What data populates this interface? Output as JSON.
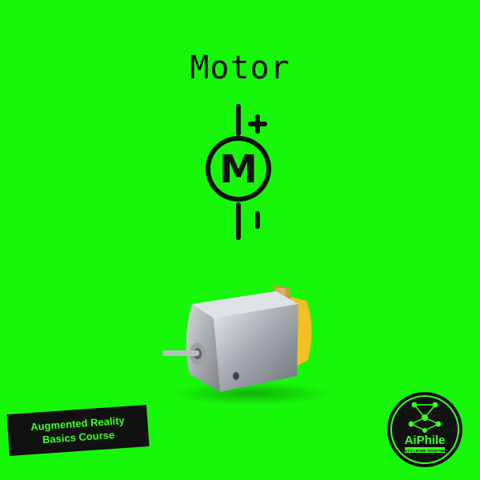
{
  "title": "Motor",
  "symbol": {
    "icon": "motor-circuit-symbol-icon",
    "letter": "M",
    "positive": "+",
    "negative": "-"
  },
  "photo": {
    "icon": "dc-motor-photo"
  },
  "badge": {
    "line1": "Augmented Reality",
    "line2": "Basics Course"
  },
  "logo": {
    "icon": "aiphile-logo-icon",
    "name": "AiPhile",
    "tagline": "LET'S LEARN TOGETHER"
  },
  "colors": {
    "background": "#17f70a",
    "ink": "#111111",
    "accent": "#3cff22",
    "motor_cap": "#f2c020"
  }
}
